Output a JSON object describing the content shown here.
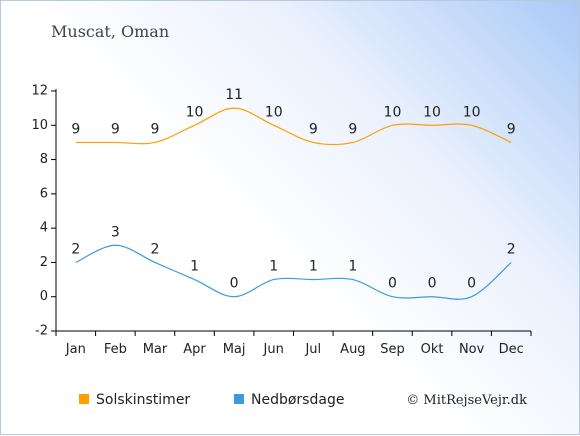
{
  "chart_data": {
    "type": "line",
    "title": "Muscat, Oman",
    "categories": [
      "Jan",
      "Feb",
      "Mar",
      "Apr",
      "Maj",
      "Jun",
      "Jul",
      "Aug",
      "Sep",
      "Okt",
      "Nov",
      "Dec"
    ],
    "ylim": [
      -2,
      12
    ],
    "yticks": [
      "-2",
      "0",
      "2",
      "4",
      "6",
      "8",
      "10",
      "12"
    ],
    "grid": false,
    "legend_position": "bottom",
    "series": [
      {
        "name": "Solskinstimer",
        "color": "#ff9f00",
        "values": [
          9,
          9,
          9,
          10,
          11,
          10,
          9,
          9,
          10,
          10,
          10,
          9
        ]
      },
      {
        "name": "Nedbørsdage",
        "color": "#3a9bdf",
        "values": [
          2,
          3,
          2,
          1,
          0,
          1,
          1,
          1,
          0,
          0,
          0,
          2
        ]
      }
    ]
  },
  "credit": "© MitRejseVejr.dk"
}
